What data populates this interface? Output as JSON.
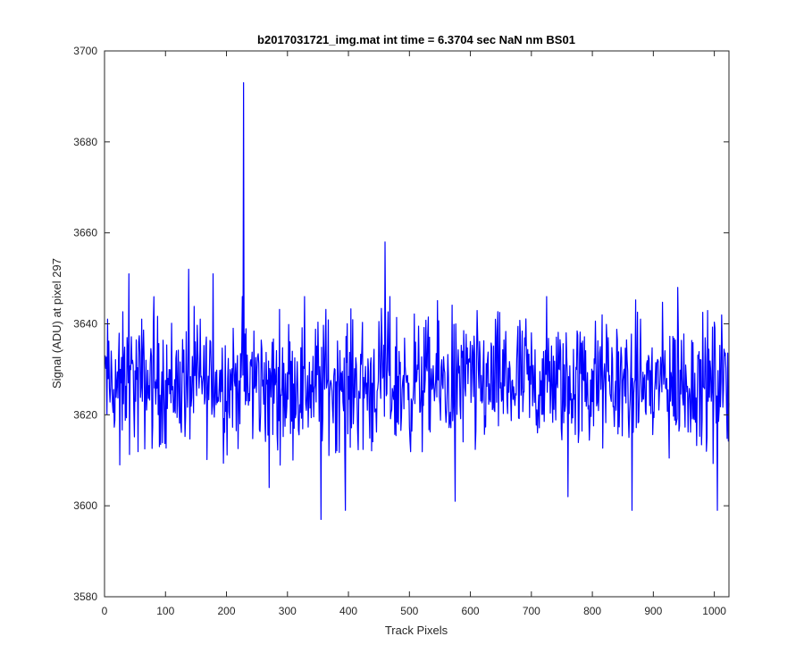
{
  "chart_data": {
    "type": "line",
    "title": "b2017031721_img.mat int time = 6.3704 sec  NaN nm BS01",
    "xlabel": "Track Pixels",
    "ylabel": "Signal (ADU) at pixel 297",
    "xlim": [
      0,
      1024
    ],
    "ylim": [
      3580,
      3700
    ],
    "xticks": [
      0,
      100,
      200,
      300,
      400,
      500,
      600,
      700,
      800,
      900,
      1000
    ],
    "yticks": [
      3580,
      3600,
      3620,
      3640,
      3660,
      3680,
      3700
    ],
    "grid": false,
    "line_color": "#0000ff",
    "series": [
      {
        "x_start": 1,
        "x_step": 1,
        "features": {
          "baseline_mean": 3627,
          "peak_points": [
            [
              40,
              3651
            ],
            [
              138,
              3652
            ],
            [
              178,
              3651
            ],
            [
              228,
              3693
            ],
            [
              460,
              3658
            ],
            [
              940,
              3648
            ]
          ],
          "trough_points": [
            [
              25,
              3609
            ],
            [
              270,
              3604
            ],
            [
              355,
              3597
            ],
            [
              395,
              3599
            ],
            [
              575,
              3601
            ],
            [
              760,
              3602
            ],
            [
              865,
              3599
            ],
            [
              1005,
              3599
            ]
          ]
        }
      }
    ]
  }
}
